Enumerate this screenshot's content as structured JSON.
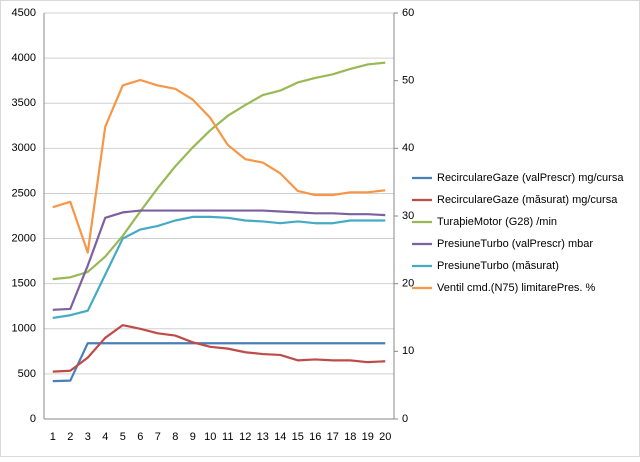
{
  "chart_data": {
    "type": "line",
    "categories": [
      1,
      2,
      3,
      4,
      5,
      6,
      7,
      8,
      9,
      10,
      11,
      12,
      13,
      14,
      15,
      16,
      17,
      18,
      19,
      20
    ],
    "ylim": [
      0,
      4500
    ],
    "yticks": [
      0,
      500,
      1000,
      1500,
      2000,
      2500,
      3000,
      3500,
      4000,
      4500
    ],
    "y2lim": [
      0,
      60
    ],
    "y2ticks": [
      0,
      10,
      20,
      30,
      40,
      50,
      60
    ],
    "grid": true,
    "legend": "right",
    "series": [
      {
        "name": "RecirculareGaze (valPrescr)  mg/cursa",
        "color": "#4a7ebb",
        "values": [
          420,
          425,
          840,
          840,
          840,
          840,
          840,
          840,
          840,
          840,
          840,
          840,
          840,
          840,
          840,
          840,
          840,
          840,
          840,
          840
        ]
      },
      {
        "name": "RecirculareGaze (măsurat)  mg/cursa",
        "color": "#be4b48",
        "values": [
          525,
          535,
          680,
          900,
          1040,
          1000,
          950,
          925,
          850,
          800,
          780,
          740,
          720,
          710,
          650,
          660,
          650,
          650,
          630,
          640
        ]
      },
      {
        "name": "TuraþieMotor (G28)  /min",
        "color": "#98b954",
        "values": [
          1550,
          1570,
          1630,
          1800,
          2030,
          2300,
          2560,
          2800,
          3010,
          3200,
          3360,
          3480,
          3590,
          3640,
          3730,
          3780,
          3820,
          3880,
          3930,
          3950
        ]
      },
      {
        "name": "PresiuneTurbo (valPrescr)  mbar",
        "color": "#7d60a0",
        "values": [
          1210,
          1220,
          1700,
          2230,
          2290,
          2310,
          2310,
          2310,
          2310,
          2310,
          2310,
          2310,
          2310,
          2300,
          2290,
          2280,
          2280,
          2270,
          2270,
          2260
        ]
      },
      {
        "name": "PresiuneTurbo (măsurat)",
        "color": "#46aac5",
        "values": [
          1120,
          1150,
          1200,
          1600,
          2000,
          2100,
          2140,
          2200,
          2240,
          2240,
          2230,
          2200,
          2190,
          2170,
          2190,
          2170,
          2170,
          2200,
          2200,
          2200
        ]
      },
      {
        "name": "Ventil cmd.(N75) limitarePres.  %",
        "color": "#f79646",
        "axis": "y2",
        "values": [
          31.3,
          32.1,
          24.6,
          43.2,
          49.3,
          50.1,
          49.3,
          48.8,
          47.2,
          44.5,
          40.5,
          38.4,
          37.9,
          36.3,
          33.7,
          33.1,
          33.1,
          33.5,
          33.5,
          33.8
        ]
      }
    ]
  }
}
